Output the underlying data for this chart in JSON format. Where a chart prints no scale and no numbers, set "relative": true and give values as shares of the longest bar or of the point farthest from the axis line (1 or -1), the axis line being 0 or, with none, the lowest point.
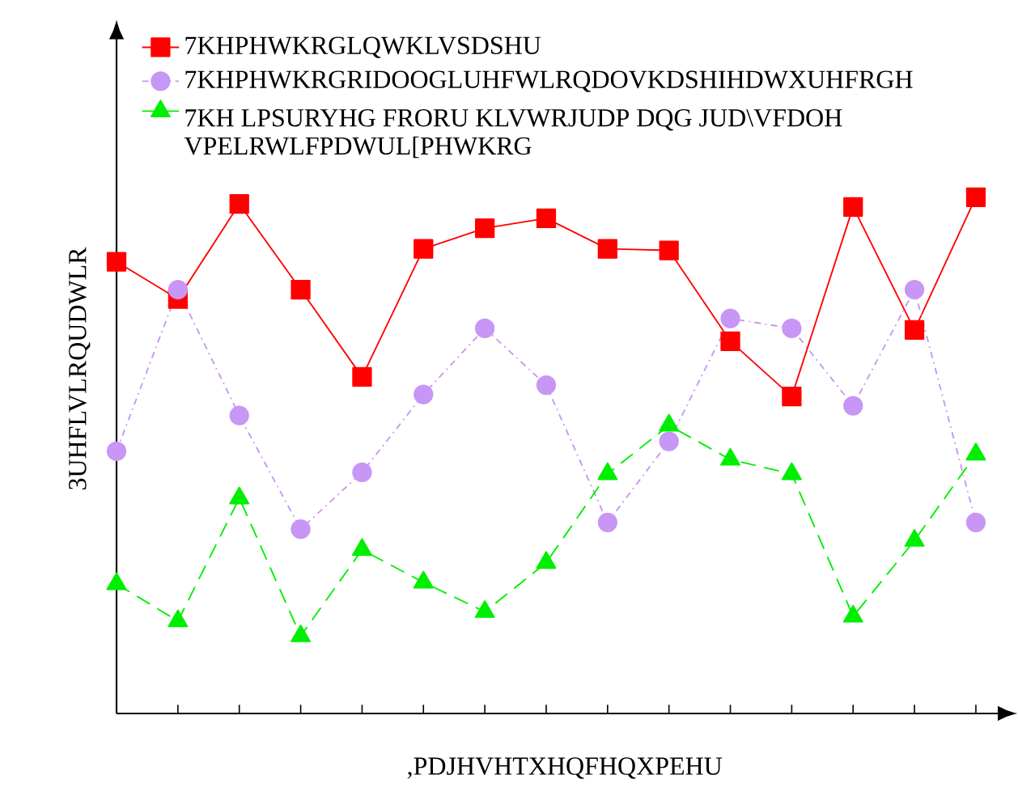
{
  "chart_data": {
    "type": "line",
    "relative": true,
    "xlabel": ",PDJHVHTXHQFHQXPEHU",
    "ylabel": "3UHFLVLRQUDWLR",
    "categories": [
      null,
      null,
      null,
      null,
      null,
      null,
      null,
      null,
      null,
      null,
      null,
      null,
      null,
      null,
      null
    ],
    "legend": "top left",
    "grid": false,
    "series": [
      {
        "name": "7KHPHWKRGLQWKLVSDSHU",
        "color": "#ff0000",
        "marker": "square",
        "line_style": "solid",
        "values": [
          0.875,
          0.803,
          0.987,
          0.821,
          0.652,
          0.9,
          0.94,
          0.959,
          0.9,
          0.897,
          0.721,
          0.614,
          0.981,
          0.743,
          1.0
        ]
      },
      {
        "name": "7KHPHWKRGRIDOOGLUHFWLRQDOVKDSHIHDWXUHFRGH",
        "color": "#c896f5",
        "marker": "circle",
        "line_style": "dotted",
        "values": [
          0.508,
          0.821,
          0.577,
          0.357,
          0.467,
          0.618,
          0.746,
          0.636,
          0.37,
          0.527,
          0.765,
          0.746,
          0.596,
          0.821,
          0.37
        ]
      },
      {
        "name": "7KH LPSURYHG FRORU KLVWRJUDP DQG JUD\\VFDOH VPELRWLFPDWUL[PHWKRG",
        "color": "#00ee00",
        "marker": "triangle",
        "line_style": "dashed",
        "values": [
          0.251,
          0.179,
          0.417,
          0.15,
          0.317,
          0.254,
          0.197,
          0.292,
          0.464,
          0.558,
          0.492,
          0.464,
          0.188,
          0.335,
          0.502
        ]
      }
    ]
  }
}
